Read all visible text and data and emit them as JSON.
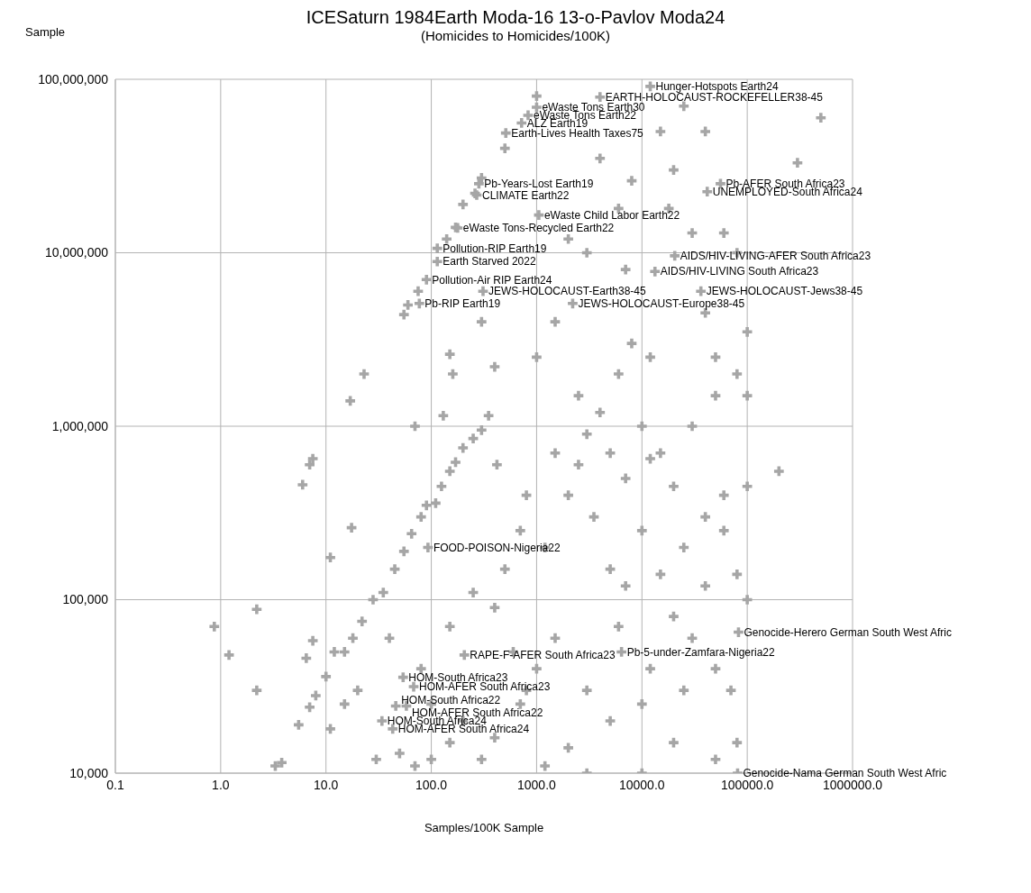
{
  "chart_data": {
    "type": "scatter",
    "title": "ICESaturn 1984Earth Moda-16 13-o-Pavlov Moda24",
    "subtitle": "(Homicides to Homicides/100K)",
    "xlabel": "Samples/100K Sample",
    "ylabel": "Sample",
    "log": "xy",
    "grid": true,
    "marker": "cross",
    "xlim": [
      0.1,
      1000000
    ],
    "xticks": [
      {
        "value": 0.1,
        "label": "0.1"
      },
      {
        "value": 1,
        "label": "1.0"
      },
      {
        "value": 10,
        "label": "10.0"
      },
      {
        "value": 100,
        "label": "100.0"
      },
      {
        "value": 1000,
        "label": "1000.0"
      },
      {
        "value": 10000,
        "label": "10000.0"
      },
      {
        "value": 100000,
        "label": "100000.0"
      },
      {
        "value": 1000000,
        "label": "1000000.0"
      }
    ],
    "ylim": [
      10000,
      100000000
    ],
    "yticks": [
      {
        "value": 10000,
        "label": "10,000"
      },
      {
        "value": 100000,
        "label": "100,000"
      },
      {
        "value": 1000000,
        "label": "1,000,000"
      },
      {
        "value": 10000000,
        "label": "10,000,000"
      },
      {
        "value": 100000000,
        "label": "100,000,000"
      }
    ],
    "series": [
      {
        "color": "#a6a6a6",
        "x": [
          12000,
          4000,
          1000,
          830,
          720,
          510,
          283,
          270,
          1050,
          178,
          55700,
          41700,
          114,
          114,
          20500,
          13300,
          90,
          310,
          36300,
          77,
          2200,
          93,
          82600,
          6400,
          206,
          54,
          68,
          46,
          58,
          34,
          43,
          81000,
          0.87,
          1.2,
          2.2,
          2.2,
          3.3,
          3.8,
          5.5,
          6,
          7,
          7.5,
          6.5,
          7.5,
          7,
          8,
          11,
          11,
          17,
          17.5,
          23,
          10,
          12,
          15,
          18,
          22,
          28,
          35,
          45,
          55,
          65,
          80,
          90,
          110,
          125,
          150,
          170,
          200,
          250,
          300,
          70,
          130,
          160,
          150,
          300,
          350,
          420,
          400,
          55,
          60,
          75,
          140,
          170,
          200,
          260,
          300,
          500,
          1000,
          500,
          700,
          1200,
          1500,
          2000,
          3000,
          2500,
          4000,
          6000,
          8000,
          5000,
          10000,
          12000,
          15000,
          20000,
          25000,
          30000,
          40000,
          50000,
          60000,
          80000,
          100000,
          200000,
          80000,
          60000,
          100000,
          500000,
          300000,
          60000,
          80000,
          100000,
          40000,
          30000,
          20000,
          15000,
          25000,
          40000,
          8000,
          6000,
          4000,
          3000,
          2000,
          1500,
          1000,
          7000,
          12000,
          18000,
          50000,
          2500,
          800,
          3500,
          5000,
          7000,
          10000,
          15000,
          20000,
          30000,
          50000,
          70000,
          80000,
          50000,
          20000,
          10000,
          5000,
          3000,
          2000,
          1500,
          1000,
          700,
          400,
          300,
          200,
          150,
          100,
          70,
          50,
          30,
          40,
          150,
          250,
          400,
          600,
          800,
          1200,
          3000,
          10000,
          6000,
          12000,
          25000,
          40000,
          100000,
          7000,
          100,
          80,
          20,
          15
        ],
        "values": [
          91000000,
          79000000,
          69000000,
          62000000,
          56000000,
          49000000,
          25000000,
          21500000,
          16500000,
          13900000,
          25000000,
          22500000,
          10600000,
          8900000,
          9600000,
          7800000,
          7000000,
          6000000,
          6000000,
          5100000,
          5100000,
          200000,
          65000,
          50000,
          48000,
          35700,
          31500,
          24400,
          24400,
          20000,
          18000,
          10000,
          70000,
          48000,
          88000,
          30000,
          11000,
          11500,
          19000,
          460000,
          600000,
          650000,
          46000,
          58000,
          24000,
          28000,
          18000,
          175000,
          1400000,
          260000,
          2000000,
          36000,
          50000,
          50000,
          60000,
          75000,
          100000,
          110000,
          150000,
          190000,
          240000,
          300000,
          350000,
          360000,
          450000,
          550000,
          620000,
          750000,
          850000,
          950000,
          1000000,
          1150000,
          2000000,
          2600000,
          4000000,
          1150000,
          600000,
          2200000,
          4400000,
          5000000,
          6000000,
          12000000,
          14000000,
          19000000,
          22000000,
          27000000,
          40000000,
          80000000,
          150000,
          250000,
          200000,
          700000,
          400000,
          900000,
          1500000,
          1200000,
          2000000,
          3000000,
          700000,
          1000000,
          650000,
          700000,
          450000,
          200000,
          1000000,
          300000,
          1500000,
          400000,
          2000000,
          1500000,
          550000,
          140000,
          250000,
          100000,
          60000000,
          33000000,
          13000000,
          10000000,
          3500000,
          4500000,
          13000000,
          30000000,
          50000000,
          70000000,
          50000000,
          26000000,
          18000000,
          35000000,
          10000000,
          12000000,
          4000000,
          2500000,
          8000000,
          2500000,
          18000000,
          2500000,
          600000,
          400000,
          300000,
          150000,
          120000,
          250000,
          140000,
          80000,
          60000,
          40000,
          30000,
          15000,
          12000,
          15000,
          25000,
          20000,
          30000,
          14000,
          60000,
          40000,
          25000,
          16000,
          12000,
          20000,
          15000,
          12000,
          11000,
          13000,
          12000,
          60000,
          70000,
          110000,
          90000,
          50000,
          30000,
          11000,
          10000,
          10000,
          70000,
          40000,
          30000,
          120000,
          450000,
          500000,
          25000,
          40000,
          30000,
          25000
        ]
      }
    ],
    "annotations": [
      {
        "text": "Hunger-Hotspots Earth24",
        "x": 12000,
        "y": 91000000
      },
      {
        "text": "EARTH-HOLOCAUST-ROCKEFELLER38-45",
        "x": 4000,
        "y": 79000000
      },
      {
        "text": "eWaste Tons Earth30",
        "x": 1000,
        "y": 69000000
      },
      {
        "text": "eWaste Tons Earth22",
        "x": 830,
        "y": 62000000
      },
      {
        "text": "ALZ Earth19",
        "x": 720,
        "y": 56000000
      },
      {
        "text": "Earth-Lives Health Taxes75",
        "x": 510,
        "y": 49000000
      },
      {
        "text": "Pb-Years-Lost Earth19",
        "x": 283,
        "y": 25000000
      },
      {
        "text": "CLIMATE Earth22",
        "x": 270,
        "y": 21500000
      },
      {
        "text": "eWaste Child Labor Earth22",
        "x": 1050,
        "y": 16500000
      },
      {
        "text": "eWaste Tons-Recycled Earth22",
        "x": 178,
        "y": 13900000
      },
      {
        "text": "Pb-AFER South Africa23",
        "x": 55700,
        "y": 25000000
      },
      {
        "text": "UNEMPLOYED-South Africa24",
        "x": 41700,
        "y": 22500000
      },
      {
        "text": "Pollution-RIP Earth19",
        "x": 114,
        "y": 10600000
      },
      {
        "text": "Earth Starved 2022",
        "x": 114,
        "y": 8900000
      },
      {
        "text": "AIDS/HIV-LIVING-AFER South Africa23",
        "x": 20500,
        "y": 9600000
      },
      {
        "text": "AIDS/HIV-LIVING South Africa23",
        "x": 13300,
        "y": 7800000
      },
      {
        "text": "Pollution-Air RIP Earth24",
        "x": 90,
        "y": 7000000
      },
      {
        "text": "JEWS-HOLOCAUST-Earth38-45",
        "x": 310,
        "y": 6000000
      },
      {
        "text": "JEWS-HOLOCAUST-Jews38-45",
        "x": 36300,
        "y": 6000000
      },
      {
        "text": "Pb-RIP Earth19",
        "x": 77,
        "y": 5100000
      },
      {
        "text": "JEWS-HOLOCAUST-Europe38-45",
        "x": 2200,
        "y": 5100000
      },
      {
        "text": "FOOD-POISON-Nigeria22",
        "x": 93,
        "y": 200000
      },
      {
        "text": "Genocide-Herero German South West Afric",
        "x": 82600,
        "y": 65000
      },
      {
        "text": "Pb-5-under-Zamfara-Nigeria22",
        "x": 6400,
        "y": 50000
      },
      {
        "text": "RAPE-F-AFER South Africa23",
        "x": 206,
        "y": 48000
      },
      {
        "text": "HOM-South Africa23",
        "x": 54,
        "y": 35700
      },
      {
        "text": "HOM-AFER South Africa23",
        "x": 68,
        "y": 31500
      },
      {
        "text": "HOM-South Africa22",
        "x": 46,
        "y": 24400
      },
      {
        "text": "HOM-AFER South Africa22",
        "x": 58,
        "y": 24400
      },
      {
        "text": "HOM-South Africa24",
        "x": 34,
        "y": 20000
      },
      {
        "text": "HOM-AFER South Africa24",
        "x": 43,
        "y": 18000
      },
      {
        "text": "Genocide-Nama German South West Afric",
        "x": 81000,
        "y": 10000
      }
    ]
  }
}
